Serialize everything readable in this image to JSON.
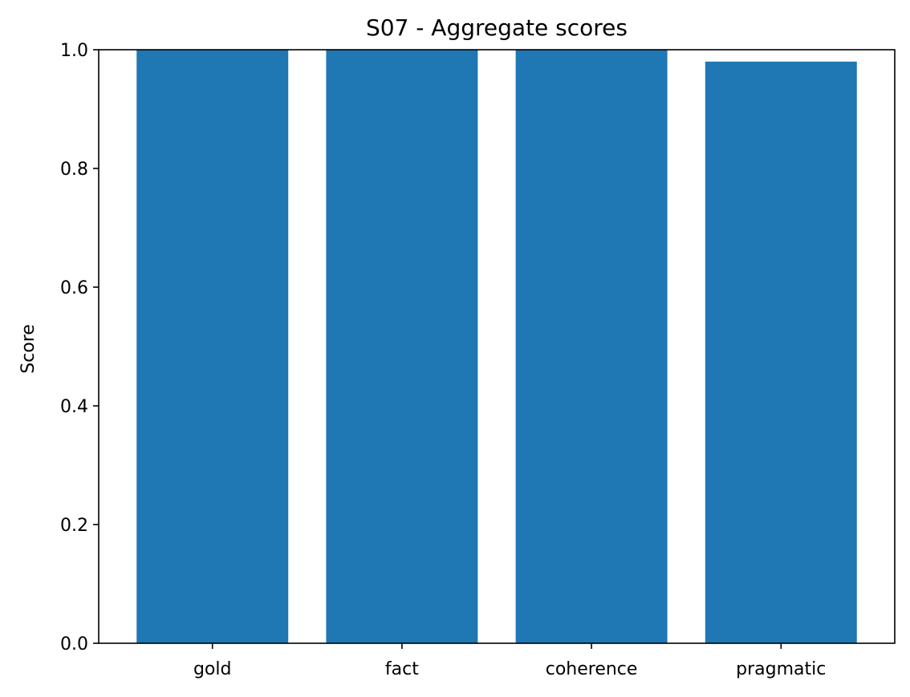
{
  "chart_data": {
    "type": "bar",
    "title": "S07 - Aggregate scores",
    "xlabel": "",
    "ylabel": "Score",
    "categories": [
      "gold",
      "fact",
      "coherence",
      "pragmatic"
    ],
    "values": [
      1.0,
      1.0,
      1.0,
      0.98
    ],
    "ylim": [
      0,
      1.0
    ],
    "yticks": [
      0.0,
      0.2,
      0.4,
      0.6,
      0.8,
      1.0
    ],
    "ytick_labels": [
      "0.0",
      "0.2",
      "0.4",
      "0.6",
      "0.8",
      "1.0"
    ],
    "bar_color": "#1f77b4",
    "grid": false,
    "legend": "none"
  }
}
